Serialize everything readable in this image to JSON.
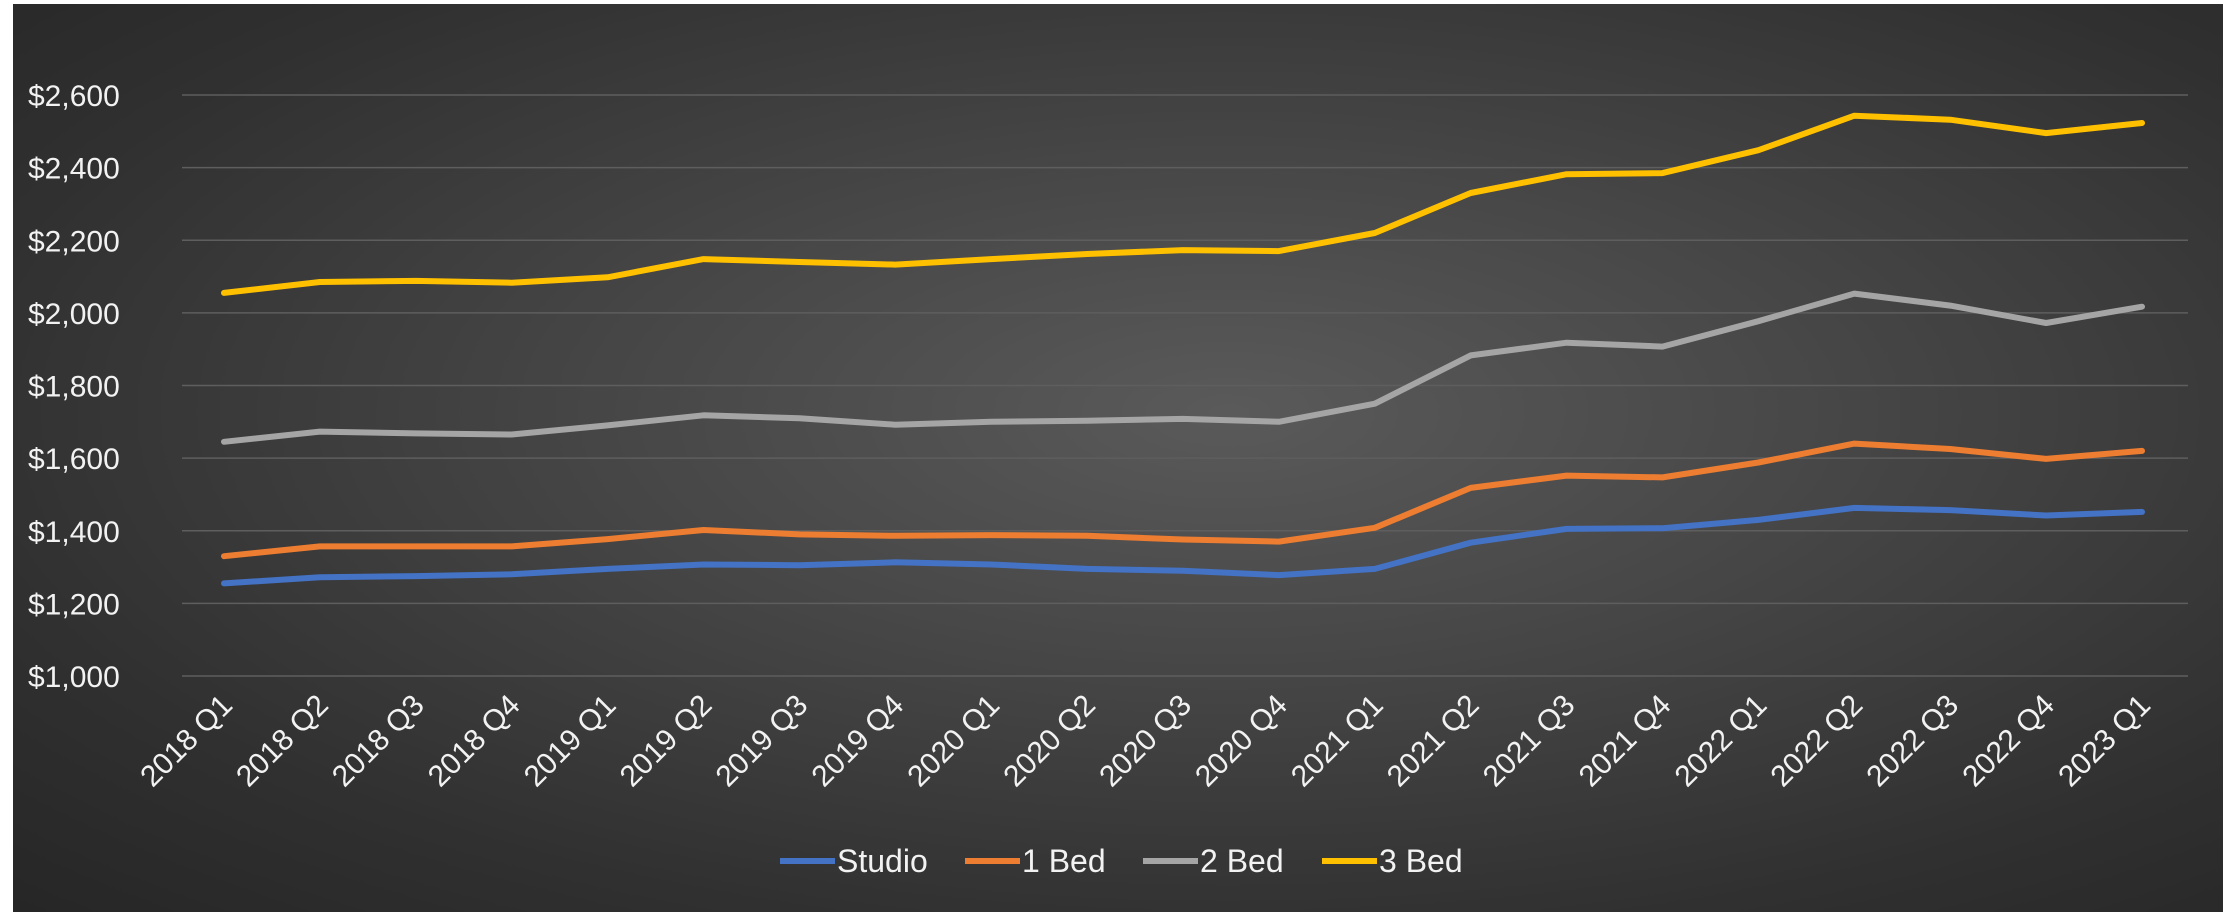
{
  "chart_data": {
    "type": "line",
    "title": "",
    "xlabel": "",
    "ylabel": "",
    "categories": [
      "2018 Q1",
      "2018 Q2",
      "2018 Q3",
      "2018 Q4",
      "2019 Q1",
      "2019 Q2",
      "2019 Q3",
      "2019 Q4",
      "2020 Q1",
      "2020 Q2",
      "2020 Q3",
      "2020 Q4",
      "2021 Q1",
      "2021 Q2",
      "2021 Q3",
      "2021 Q4",
      "2022 Q1",
      "2022 Q2",
      "2022 Q3",
      "2022 Q4",
      "2023 Q1"
    ],
    "ylim": [
      1000,
      2600
    ],
    "yticks": [
      1000,
      1200,
      1400,
      1600,
      1800,
      2000,
      2200,
      2400,
      2600
    ],
    "ytick_labels": [
      "$1,000",
      "$1,200",
      "$1,400",
      "$1,600",
      "$1,800",
      "$2,000",
      "$2,200",
      "$2,400",
      "$2,600"
    ],
    "grid": "horizontal",
    "legend_position": "bottom",
    "series": [
      {
        "name": "Studio",
        "color": "#4472c4",
        "values": [
          1255,
          1272,
          1275,
          1280,
          1295,
          1307,
          1305,
          1313,
          1307,
          1295,
          1290,
          1278,
          1295,
          1367,
          1405,
          1407,
          1430,
          1463,
          1457,
          1442,
          1452
        ]
      },
      {
        "name": "1 Bed",
        "color": "#ed7d31",
        "values": [
          1330,
          1357,
          1357,
          1357,
          1377,
          1402,
          1390,
          1386,
          1388,
          1386,
          1376,
          1370,
          1408,
          1518,
          1552,
          1547,
          1588,
          1640,
          1625,
          1598,
          1620
        ]
      },
      {
        "name": "2 Bed",
        "color": "#a5a5a5",
        "values": [
          1645,
          1673,
          1668,
          1665,
          1690,
          1718,
          1710,
          1692,
          1700,
          1703,
          1708,
          1700,
          1750,
          1883,
          1918,
          1907,
          1977,
          2053,
          2020,
          1972,
          2017
        ]
      },
      {
        "name": "3 Bed",
        "color": "#ffc000",
        "values": [
          2055,
          2085,
          2088,
          2083,
          2098,
          2148,
          2140,
          2133,
          2148,
          2162,
          2173,
          2170,
          2220,
          2330,
          2382,
          2385,
          2448,
          2543,
          2532,
          2495,
          2523
        ]
      }
    ]
  }
}
